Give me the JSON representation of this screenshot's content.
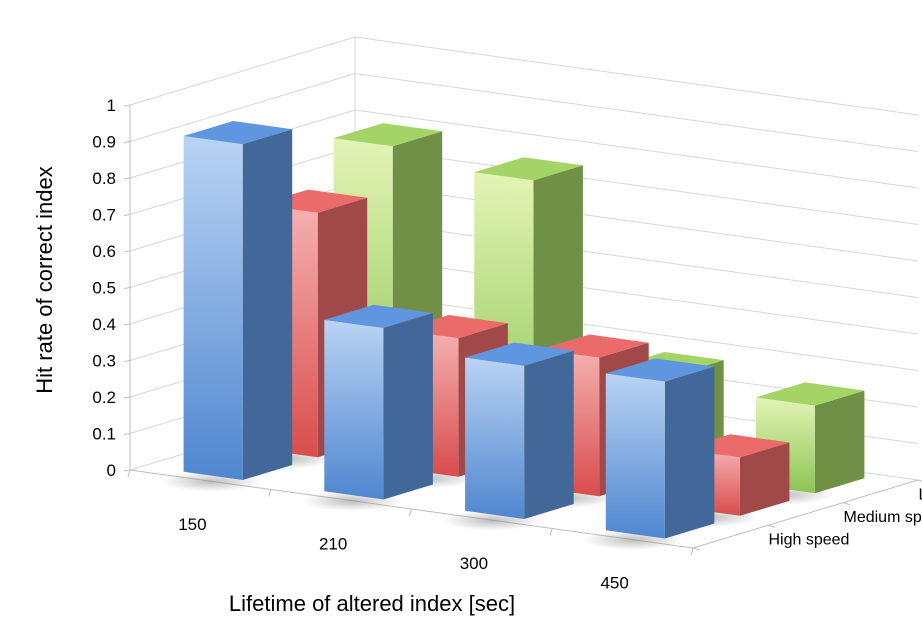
{
  "chart_data": {
    "type": "bar",
    "subtype": "3d-clustered-column",
    "title": "",
    "xlabel": "Lifetime of altered index [sec]",
    "ylabel": "Hit rate of correct index",
    "zlabel": "",
    "categories": [
      "150",
      "210",
      "300",
      "450"
    ],
    "yticks": [
      "0",
      "0.1",
      "0.2",
      "0.3",
      "0.4",
      "0.5",
      "0.6",
      "0.7",
      "0.8",
      "0.9",
      "1"
    ],
    "ylim": [
      0,
      1
    ],
    "grid": true,
    "series": [
      {
        "name": "High speed",
        "color": "#5b8fd4",
        "values": [
          0.92,
          0.47,
          0.42,
          0.43
        ]
      },
      {
        "name": "Medium speed",
        "color": "#e06666",
        "values": [
          0.67,
          0.38,
          0.38,
          0.16
        ]
      },
      {
        "name": "Low speed",
        "color": "#9bca60",
        "values": [
          0.79,
          0.75,
          0.27,
          0.24
        ]
      }
    ]
  }
}
